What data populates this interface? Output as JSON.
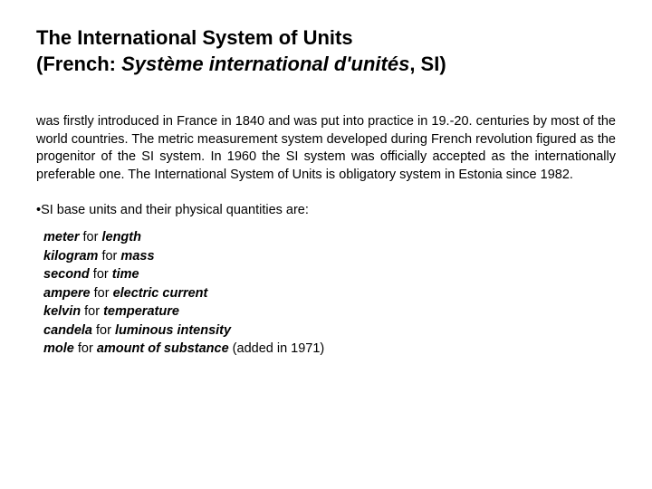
{
  "title": {
    "line1": "The International System of Units",
    "line2_prefix": "(French: ",
    "line2_italic": "Système international d'unités",
    "line2_suffix": ", SI)"
  },
  "paragraph": "was firstly introduced in France in 1840 and was put into practice in 19.-20. centuries by most of the world countries. The metric measurement system developed during French revolution figured as the progenitor of the SI system. In 1960 the SI system was officially accepted as the internationally preferable one. The International System of Units is obligatory system in Estonia since 1982.",
  "intro_bullet": "•",
  "intro_text": "SI base units and their physical quantities are:",
  "for_word": " for ",
  "units": [
    {
      "unit": "meter",
      "quantity": "length",
      "suffix": ""
    },
    {
      "unit": "kilogram",
      "quantity": "mass",
      "suffix": ""
    },
    {
      "unit": "second",
      "quantity": "time",
      "suffix": ""
    },
    {
      "unit": "ampere",
      "quantity": "electric current",
      "suffix": ""
    },
    {
      "unit": "kelvin",
      "quantity": "temperature",
      "suffix": ""
    },
    {
      "unit": "candela",
      "quantity": "luminous intensity",
      "suffix": ""
    },
    {
      "unit": "mole",
      "quantity": "amount of substance",
      "suffix": " (added in 1971)"
    }
  ],
  "style": {
    "background_color": "#ffffff",
    "text_color": "#000000",
    "title_fontsize": 22,
    "body_fontsize": 14.5,
    "font_family": "Arial"
  }
}
